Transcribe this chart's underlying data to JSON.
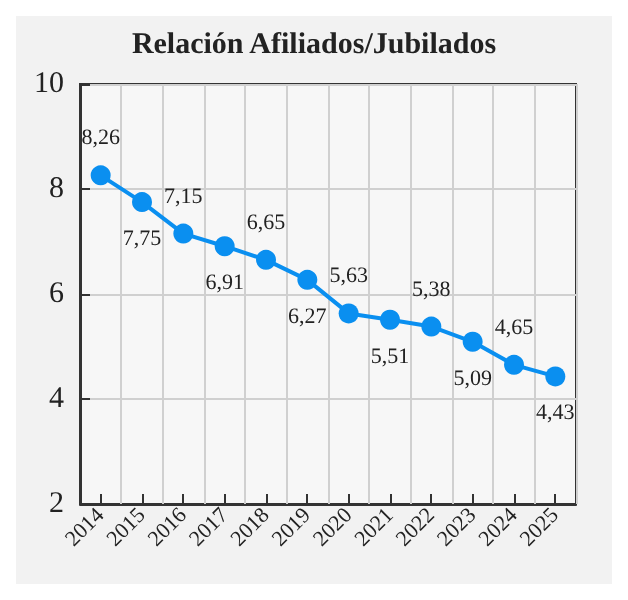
{
  "chart_data": {
    "type": "line",
    "title": "Relación Afiliados/Jubilados",
    "categories": [
      "2014",
      "2015",
      "2016",
      "2017",
      "2018",
      "2019",
      "2020",
      "2021",
      "2022",
      "2023",
      "2024",
      "2025"
    ],
    "series": [
      {
        "color": "#0a8ff0",
        "values": [
          8.26,
          7.75,
          7.15,
          6.91,
          6.65,
          6.27,
          5.63,
          5.51,
          5.38,
          5.09,
          4.65,
          4.43
        ],
        "value_labels": [
          "8,26",
          "7,75",
          "7,15",
          "6,91",
          "6,65",
          "6,27",
          "5,63",
          "5,51",
          "5,38",
          "5,09",
          "4,65",
          "4,43"
        ]
      }
    ],
    "ylim": [
      2,
      10
    ],
    "yticks": [
      2,
      4,
      6,
      8,
      10
    ],
    "grid": true,
    "marker": "circle",
    "line_style": "solid"
  }
}
